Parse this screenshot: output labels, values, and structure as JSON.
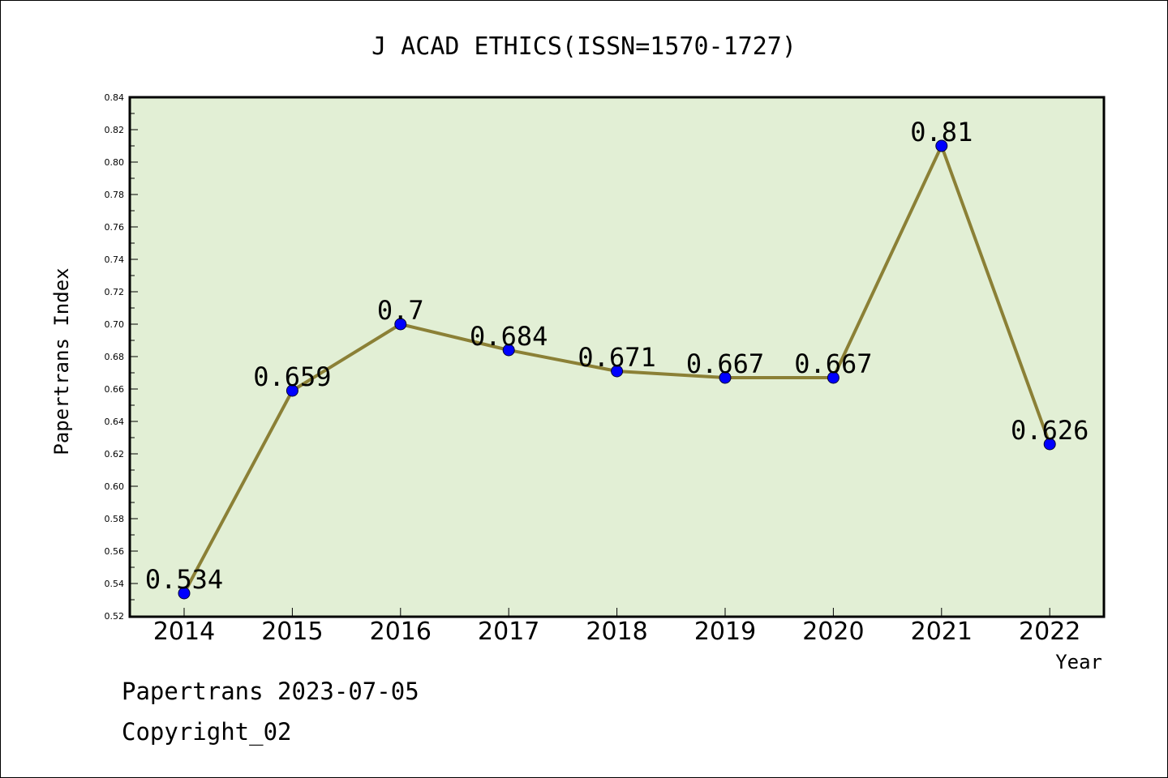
{
  "chart_data": {
    "type": "line",
    "title": "J ACAD ETHICS(ISSN=1570-1727)",
    "xlabel": "Year",
    "ylabel": "Papertrans Index",
    "categories": [
      "2014",
      "2015",
      "2016",
      "2017",
      "2018",
      "2019",
      "2020",
      "2021",
      "2022"
    ],
    "series": [
      {
        "values": [
          0.534,
          0.659,
          0.7,
          0.684,
          0.671,
          0.667,
          0.667,
          0.81,
          0.626
        ],
        "data_labels": [
          "0.534",
          "0.659",
          "0.7",
          "0.684",
          "0.671",
          "0.667",
          "0.667",
          "0.81",
          "0.626"
        ],
        "line_color": "#8b8036",
        "marker_color": "#0000ff"
      }
    ],
    "ylim": [
      0.52,
      0.84
    ],
    "yticks": [
      "0.52",
      "0.54",
      "0.56",
      "0.58",
      "0.60",
      "0.62",
      "0.64",
      "0.66",
      "0.68",
      "0.70",
      "0.72",
      "0.74",
      "0.76",
      "0.78",
      "0.80",
      "0.82",
      "0.84"
    ],
    "grid": false,
    "legend": "none",
    "plot_background": "#e2efd5"
  },
  "footer": {
    "date_line": "Papertrans 2023-07-05",
    "copyright_line": "Copyright_02"
  }
}
